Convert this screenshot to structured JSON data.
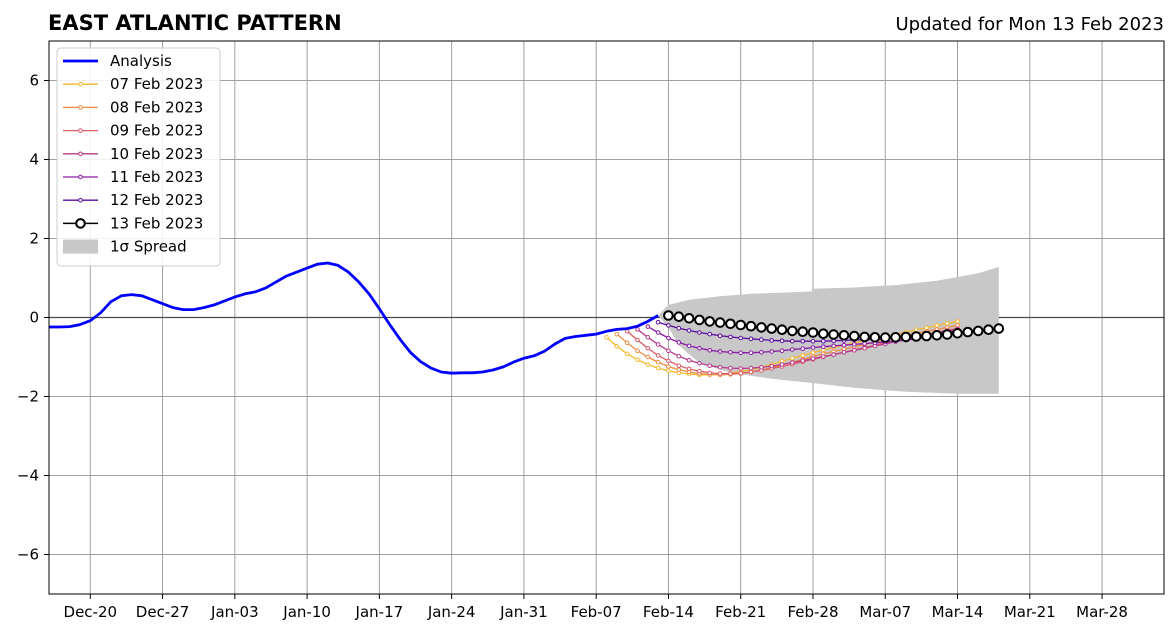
{
  "chart_data": {
    "type": "line",
    "title": "EAST ATLANTIC PATTERN",
    "subtitle": "Updated for Mon 13 Feb 2023",
    "xlabel": "",
    "ylabel": "",
    "ylim": [
      -7,
      7
    ],
    "xlim": [
      "2022-12-16",
      "2023-04-03"
    ],
    "grid": true,
    "legend_position": "top-left",
    "x_ticks": [
      "Dec-20",
      "Dec-27",
      "Jan-03",
      "Jan-10",
      "Jan-17",
      "Jan-24",
      "Jan-31",
      "Feb-07",
      "Feb-14",
      "Feb-21",
      "Feb-28",
      "Mar-07",
      "Mar-14",
      "Mar-21",
      "Mar-28"
    ],
    "y_ticks": [
      "6",
      "4",
      "2",
      "0",
      "−2",
      "−4",
      "−6"
    ],
    "y_tick_values": [
      6,
      4,
      2,
      0,
      -2,
      -4,
      -6
    ],
    "spread_label": "1σ Spread",
    "analysis": {
      "name": "Analysis",
      "color": "#0000ff",
      "points": [
        [
          "2022-12-16",
          -0.24
        ],
        [
          "2022-12-17",
          -0.24
        ],
        [
          "2022-12-18",
          -0.23
        ],
        [
          "2022-12-19",
          -0.18
        ],
        [
          "2022-12-20",
          -0.08
        ],
        [
          "2022-12-21",
          0.12
        ],
        [
          "2022-12-22",
          0.4
        ],
        [
          "2022-12-23",
          0.55
        ],
        [
          "2022-12-24",
          0.58
        ],
        [
          "2022-12-25",
          0.55
        ],
        [
          "2022-12-26",
          0.45
        ],
        [
          "2022-12-27",
          0.35
        ],
        [
          "2022-12-28",
          0.25
        ],
        [
          "2022-12-29",
          0.2
        ],
        [
          "2022-12-30",
          0.2
        ],
        [
          "2022-12-31",
          0.25
        ],
        [
          "2023-01-01",
          0.32
        ],
        [
          "2023-01-02",
          0.42
        ],
        [
          "2023-01-03",
          0.52
        ],
        [
          "2023-01-04",
          0.6
        ],
        [
          "2023-01-05",
          0.65
        ],
        [
          "2023-01-06",
          0.75
        ],
        [
          "2023-01-07",
          0.9
        ],
        [
          "2023-01-08",
          1.05
        ],
        [
          "2023-01-09",
          1.15
        ],
        [
          "2023-01-10",
          1.25
        ],
        [
          "2023-01-11",
          1.35
        ],
        [
          "2023-01-12",
          1.38
        ],
        [
          "2023-01-13",
          1.32
        ],
        [
          "2023-01-14",
          1.15
        ],
        [
          "2023-01-15",
          0.9
        ],
        [
          "2023-01-16",
          0.6
        ],
        [
          "2023-01-17",
          0.22
        ],
        [
          "2023-01-18",
          -0.18
        ],
        [
          "2023-01-19",
          -0.55
        ],
        [
          "2023-01-20",
          -0.88
        ],
        [
          "2023-01-21",
          -1.12
        ],
        [
          "2023-01-22",
          -1.28
        ],
        [
          "2023-01-23",
          -1.38
        ],
        [
          "2023-01-24",
          -1.41
        ],
        [
          "2023-01-25",
          -1.4
        ],
        [
          "2023-01-26",
          -1.4
        ],
        [
          "2023-01-27",
          -1.38
        ],
        [
          "2023-01-28",
          -1.33
        ],
        [
          "2023-01-29",
          -1.25
        ],
        [
          "2023-01-30",
          -1.13
        ],
        [
          "2023-01-31",
          -1.03
        ],
        [
          "2023-02-01",
          -0.97
        ],
        [
          "2023-02-02",
          -0.85
        ],
        [
          "2023-02-03",
          -0.67
        ],
        [
          "2023-02-04",
          -0.53
        ],
        [
          "2023-02-05",
          -0.48
        ],
        [
          "2023-02-06",
          -0.45
        ],
        [
          "2023-02-07",
          -0.42
        ],
        [
          "2023-02-08",
          -0.35
        ],
        [
          "2023-02-09",
          -0.3
        ],
        [
          "2023-02-10",
          -0.28
        ],
        [
          "2023-02-11",
          -0.22
        ],
        [
          "2023-02-12",
          -0.1
        ],
        [
          "2023-02-13",
          0.05
        ]
      ]
    },
    "forecasts": [
      {
        "name": "07 Feb 2023",
        "color": "#f5b82e",
        "start": "2023-02-08",
        "values": [
          -0.5,
          -0.73,
          -0.92,
          -1.07,
          -1.19,
          -1.28,
          -1.35,
          -1.4,
          -1.43,
          -1.45,
          -1.45,
          -1.44,
          -1.41,
          -1.37,
          -1.32,
          -1.26,
          -1.19,
          -1.11,
          -1.03,
          -0.96,
          -0.89,
          -0.82,
          -0.76,
          -0.7,
          -0.64,
          -0.59,
          -0.53,
          -0.48,
          -0.43,
          -0.37,
          -0.31,
          -0.26,
          -0.2,
          -0.15,
          -0.1
        ]
      },
      {
        "name": "08 Feb 2023",
        "color": "#ee8c44",
        "start": "2023-02-09",
        "values": [
          -0.42,
          -0.64,
          -0.84,
          -1.0,
          -1.13,
          -1.24,
          -1.32,
          -1.38,
          -1.42,
          -1.44,
          -1.45,
          -1.44,
          -1.42,
          -1.38,
          -1.33,
          -1.27,
          -1.2,
          -1.13,
          -1.06,
          -0.99,
          -0.92,
          -0.86,
          -0.8,
          -0.74,
          -0.68,
          -0.62,
          -0.56,
          -0.5,
          -0.45,
          -0.4,
          -0.35,
          -0.3,
          -0.25,
          -0.2
        ]
      },
      {
        "name": "09 Feb 2023",
        "color": "#dc5c6c",
        "start": "2023-02-10",
        "values": [
          -0.35,
          -0.57,
          -0.78,
          -0.96,
          -1.1,
          -1.22,
          -1.3,
          -1.36,
          -1.4,
          -1.42,
          -1.42,
          -1.41,
          -1.38,
          -1.34,
          -1.29,
          -1.24,
          -1.18,
          -1.12,
          -1.06,
          -1.0,
          -0.94,
          -0.88,
          -0.82,
          -0.76,
          -0.7,
          -0.64,
          -0.58,
          -0.52,
          -0.47,
          -0.42,
          -0.37,
          -0.32,
          -0.28
        ]
      },
      {
        "name": "10 Feb 2023",
        "color": "#b83a8c",
        "start": "2023-02-11",
        "values": [
          -0.3,
          -0.5,
          -0.68,
          -0.84,
          -0.98,
          -1.08,
          -1.16,
          -1.22,
          -1.26,
          -1.28,
          -1.29,
          -1.28,
          -1.26,
          -1.23,
          -1.19,
          -1.14,
          -1.09,
          -1.04,
          -0.99,
          -0.94,
          -0.88,
          -0.83,
          -0.78,
          -0.72,
          -0.67,
          -0.61,
          -0.56,
          -0.5,
          -0.45,
          -0.4,
          -0.35,
          -0.3
        ]
      },
      {
        "name": "11 Feb 2023",
        "color": "#8a1aa6",
        "start": "2023-02-12",
        "values": [
          -0.23,
          -0.38,
          -0.52,
          -0.63,
          -0.72,
          -0.78,
          -0.83,
          -0.86,
          -0.88,
          -0.89,
          -0.89,
          -0.88,
          -0.86,
          -0.84,
          -0.81,
          -0.79,
          -0.76,
          -0.74,
          -0.72,
          -0.7,
          -0.68,
          -0.66,
          -0.64,
          -0.62,
          -0.6,
          -0.57,
          -0.54,
          -0.5,
          -0.46,
          -0.42,
          -0.38
        ]
      },
      {
        "name": "12 Feb 2023",
        "color": "#5a0aa0",
        "start": "2023-02-13",
        "values": [
          -0.12,
          -0.2,
          -0.27,
          -0.33,
          -0.38,
          -0.42,
          -0.46,
          -0.49,
          -0.52,
          -0.54,
          -0.56,
          -0.58,
          -0.59,
          -0.6,
          -0.6,
          -0.6,
          -0.6,
          -0.59,
          -0.58,
          -0.57,
          -0.56,
          -0.55,
          -0.53,
          -0.51,
          -0.49,
          -0.46,
          -0.43,
          -0.4,
          -0.37,
          -0.34
        ]
      }
    ],
    "main_forecast": {
      "name": "13 Feb 2023",
      "color": "#000000",
      "start": "2023-02-14",
      "values": [
        0.05,
        0.02,
        -0.02,
        -0.06,
        -0.1,
        -0.13,
        -0.16,
        -0.19,
        -0.22,
        -0.25,
        -0.28,
        -0.31,
        -0.34,
        -0.36,
        -0.38,
        -0.41,
        -0.43,
        -0.45,
        -0.47,
        -0.49,
        -0.5,
        -0.51,
        -0.5,
        -0.49,
        -0.48,
        -0.47,
        -0.45,
        -0.43,
        -0.4,
        -0.37,
        -0.34,
        -0.31,
        -0.28
      ]
    },
    "spread": {
      "color": "#c8c8c8",
      "upper": [
        [
          "2023-02-13",
          0.05
        ],
        [
          "2023-02-14",
          0.32
        ],
        [
          "2023-02-16",
          0.45
        ],
        [
          "2023-02-19",
          0.54
        ],
        [
          "2023-02-22",
          0.6
        ],
        [
          "2023-02-26",
          0.64
        ],
        [
          "2023-02-28",
          0.66
        ],
        [
          "2023-02-28",
          0.73
        ],
        [
          "2023-03-04",
          0.76
        ],
        [
          "2023-03-08",
          0.82
        ],
        [
          "2023-03-12",
          0.93
        ],
        [
          "2023-03-16",
          1.12
        ],
        [
          "2023-03-18",
          1.28
        ]
      ],
      "lower": [
        [
          "2023-03-18",
          -1.93
        ],
        [
          "2023-03-14",
          -1.93
        ],
        [
          "2023-03-09",
          -1.88
        ],
        [
          "2023-03-04",
          -1.78
        ],
        [
          "2023-02-28",
          -1.66
        ],
        [
          "2023-02-24",
          -1.55
        ],
        [
          "2023-02-20",
          -1.4
        ],
        [
          "2023-02-17",
          -1.15
        ],
        [
          "2023-02-15",
          -0.7
        ],
        [
          "2023-02-14",
          -0.25
        ],
        [
          "2023-02-13",
          0.05
        ]
      ]
    }
  }
}
